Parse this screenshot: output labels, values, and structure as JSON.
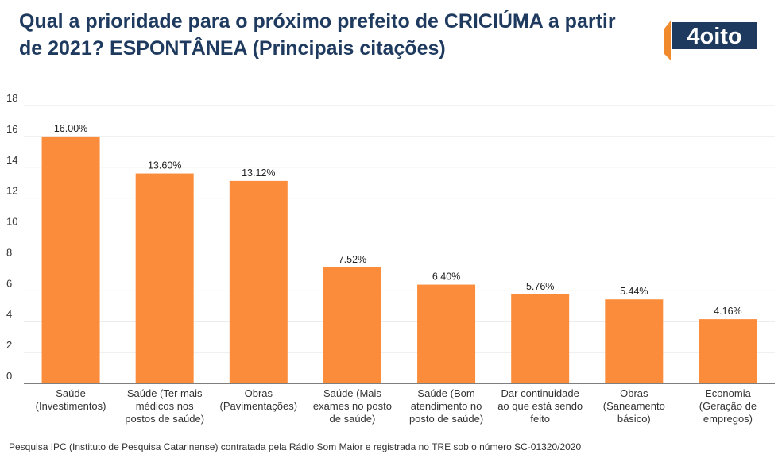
{
  "title": "Qual a prioridade para o próximo prefeito de CRICIÚMA a partir de 2021? ESPONTÂNEA (Principais citações)",
  "logo": {
    "text": "4oito",
    "colors": {
      "orange": "#f18a2c",
      "navy": "#1f3a5f"
    }
  },
  "footer": "Pesquisa IPC (Instituto de Pesquisa Catarinense) contratada pela Rádio Som Maior e registrada no TRE sob o número SC-01320/2020",
  "colors": {
    "bar": "#fb8c3c",
    "grid": "#e6e6e6",
    "axis": "#333333",
    "title": "#1f3a5f"
  },
  "chart_data": {
    "type": "bar",
    "title": "Qual a prioridade para o próximo prefeito de CRICIÚMA a partir de 2021? ESPONTÂNEA (Principais citações)",
    "xlabel": "",
    "ylabel": "",
    "ylim": [
      0,
      18
    ],
    "yticks": [
      0,
      2,
      4,
      6,
      8,
      10,
      12,
      14,
      16,
      18
    ],
    "grid": true,
    "legend": "none",
    "categories": [
      [
        "Saúde",
        "(Investimentos)"
      ],
      [
        "Saúde (Ter mais",
        "médicos nos",
        "postos de saúde)"
      ],
      [
        "Obras",
        "(Pavimentações)"
      ],
      [
        "Saúde (Mais",
        "exames no posto",
        "de saúde)"
      ],
      [
        "Saúde (Bom",
        "atendimento no",
        "posto de saúde)"
      ],
      [
        "Dar continuidade",
        "ao que está sendo",
        "feito"
      ],
      [
        "Obras",
        "(Saneamento",
        "básico)"
      ],
      [
        "Economia",
        "(Geração de",
        "empregos)"
      ]
    ],
    "values": [
      16.0,
      13.6,
      13.12,
      7.52,
      6.4,
      5.76,
      5.44,
      4.16
    ],
    "data_labels": [
      "16.00%",
      "13.60%",
      "13.12%",
      "7.52%",
      "6.40%",
      "5.76%",
      "5.44%",
      "4.16%"
    ]
  }
}
